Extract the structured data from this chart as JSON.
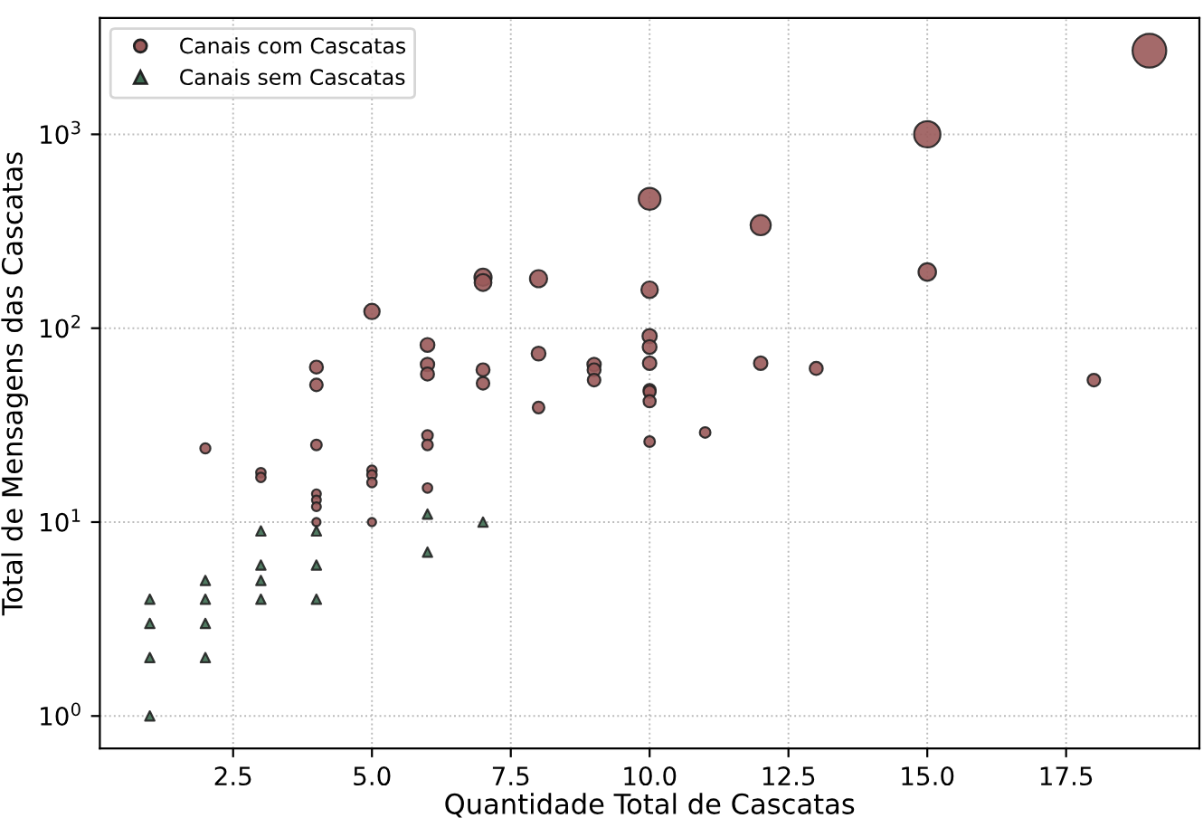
{
  "chart_data": {
    "type": "bubble",
    "xlabel": "Quantidade Total de Cascatas",
    "ylabel": "Total de Mensagens das Cascatas",
    "log": "y",
    "grid": true,
    "legend": "top left",
    "xlim": [
      0.1,
      19.9
    ],
    "xticks": [
      2.5,
      {
        "value": 5,
        "label": "5.0"
      },
      7.5,
      {
        "value": 10,
        "label": "10.0"
      },
      12.5,
      {
        "value": 15,
        "label": "15.0"
      },
      17.5
    ],
    "ylim": [
      0.68,
      3980
    ],
    "yticks": [
      {
        "value": 1,
        "label": "10$^{0}$"
      },
      {
        "value": 10,
        "label": "10$^{1}$"
      },
      {
        "value": 100,
        "label": "10$^{2}$"
      },
      {
        "value": 1000,
        "label": "10$^{3}$"
      }
    ],
    "series": [
      {
        "name": "Canais com Cascatas",
        "marker": "circle",
        "color": "#9a5a5a",
        "x": [
          2,
          3,
          3,
          4,
          4,
          4,
          4,
          4,
          4,
          4,
          5,
          5,
          5,
          5,
          5,
          6,
          6,
          6,
          6,
          6,
          6,
          7,
          7,
          7,
          7,
          8,
          8,
          8,
          9,
          9,
          9,
          10,
          10,
          10,
          10,
          10,
          10,
          10,
          10,
          10,
          11,
          12,
          12,
          13,
          15,
          15,
          18,
          19
        ],
        "values": [
          24,
          18,
          17,
          63,
          51,
          25,
          14,
          13,
          12,
          10,
          122,
          18.5,
          17.5,
          16,
          10,
          82,
          65,
          58,
          28,
          25,
          15,
          183,
          172,
          61,
          52,
          180,
          74,
          39,
          65,
          61,
          54,
          465,
          158,
          91,
          80,
          66,
          48,
          47,
          42,
          26,
          29,
          340,
          66,
          62,
          1000,
          195,
          54,
          2700
        ],
        "sizes": [
          0.09,
          0.08,
          0.08,
          0.15,
          0.14,
          0.1,
          0.07,
          0.07,
          0.07,
          0.06,
          0.21,
          0.08,
          0.08,
          0.08,
          0.06,
          0.17,
          0.16,
          0.15,
          0.1,
          0.1,
          0.08,
          0.26,
          0.25,
          0.15,
          0.14,
          0.26,
          0.17,
          0.12,
          0.16,
          0.15,
          0.14,
          0.42,
          0.24,
          0.18,
          0.17,
          0.16,
          0.13,
          0.13,
          0.13,
          0.1,
          0.1,
          0.36,
          0.16,
          0.15,
          0.61,
          0.27,
          0.14,
          1
        ]
      },
      {
        "name": "Canais sem Cascatas",
        "type": "scatter",
        "marker": "triangle",
        "color": "#3d6b50",
        "x": [
          1,
          1,
          1,
          1,
          2,
          2,
          2,
          2,
          3,
          3,
          3,
          3,
          4,
          4,
          4,
          6,
          6,
          7
        ],
        "values": [
          4,
          3,
          2,
          1,
          5,
          4,
          3,
          2,
          9,
          6,
          5,
          4,
          9,
          6,
          4,
          11,
          7,
          10
        ]
      }
    ]
  }
}
